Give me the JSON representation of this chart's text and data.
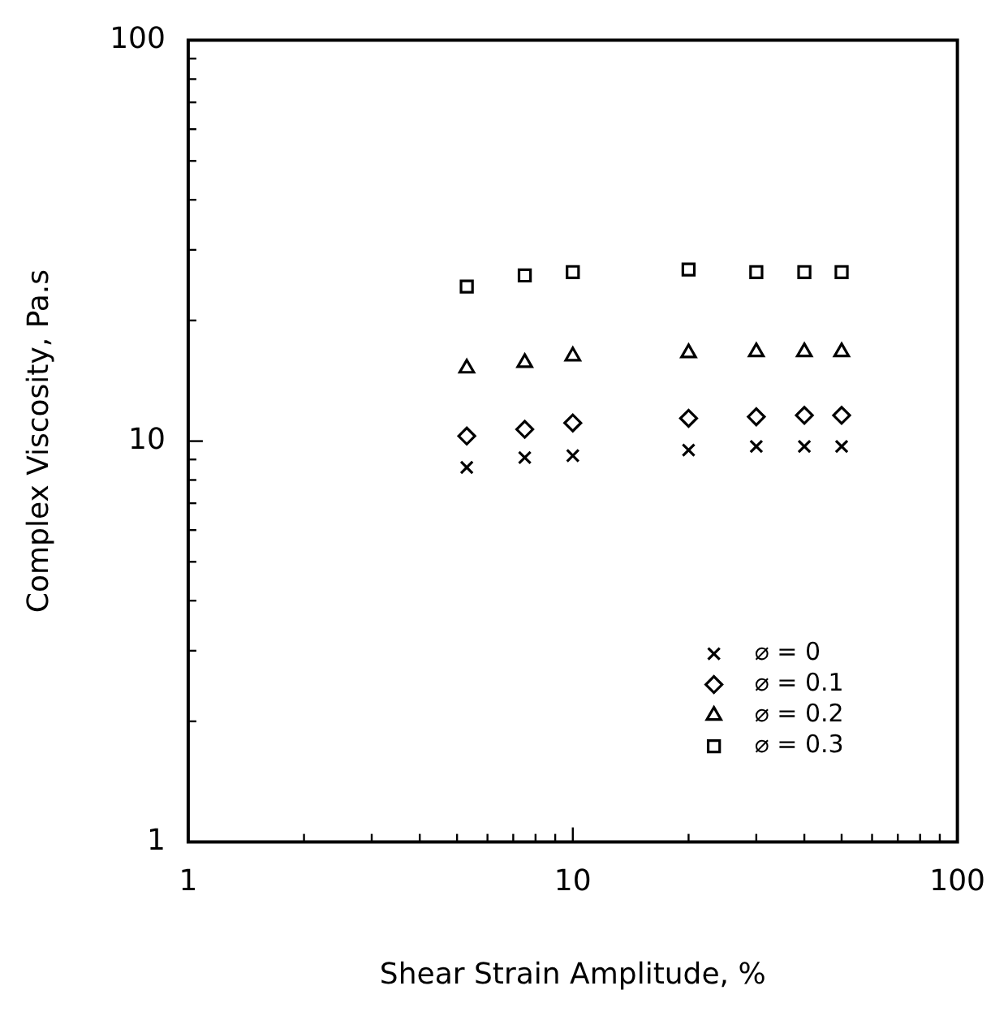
{
  "chart_data": {
    "type": "scatter",
    "xlabel": "Shear Strain Amplitude, %",
    "ylabel": "Complex Viscosity, Pa.s",
    "log": "xy",
    "grid": false,
    "legend": "bottom right",
    "xlim": [
      1,
      100
    ],
    "ylim": [
      1,
      100
    ],
    "xticks": [
      1,
      {
        "value": 2,
        "label": null
      },
      {
        "value": 3,
        "label": null
      },
      {
        "value": 4,
        "label": null
      },
      {
        "value": 5,
        "label": null
      },
      {
        "value": 6,
        "label": null
      },
      {
        "value": 7,
        "label": null
      },
      {
        "value": 8,
        "label": null
      },
      {
        "value": 9,
        "label": null
      },
      10,
      {
        "value": 20,
        "label": null
      },
      {
        "value": 30,
        "label": null
      },
      {
        "value": 40,
        "label": null
      },
      {
        "value": 50,
        "label": null
      },
      {
        "value": 60,
        "label": null
      },
      {
        "value": 70,
        "label": null
      },
      {
        "value": 80,
        "label": null
      },
      {
        "value": 90,
        "label": null
      },
      100
    ],
    "yticks": [
      1,
      {
        "value": 2,
        "label": null
      },
      {
        "value": 3,
        "label": null
      },
      {
        "value": 4,
        "label": null
      },
      {
        "value": 5,
        "label": null
      },
      {
        "value": 6,
        "label": null
      },
      {
        "value": 7,
        "label": null
      },
      {
        "value": 8,
        "label": null
      },
      {
        "value": 9,
        "label": null
      },
      10,
      {
        "value": 20,
        "label": null
      },
      {
        "value": 30,
        "label": null
      },
      {
        "value": 40,
        "label": null
      },
      {
        "value": 50,
        "label": null
      },
      {
        "value": 60,
        "label": null
      },
      {
        "value": 70,
        "label": null
      },
      {
        "value": 80,
        "label": null
      },
      {
        "value": 90,
        "label": null
      },
      100
    ],
    "x": [
      5.3,
      7.5,
      10,
      20,
      30,
      40,
      50
    ],
    "series": [
      {
        "name": "⌀ = 0",
        "color": "#000000",
        "marker": "cross",
        "values": [
          8.6,
          9.1,
          9.2,
          9.5,
          9.7,
          9.7,
          9.7
        ]
      },
      {
        "name": "⌀ = 0.1",
        "color": "#000000",
        "marker": "diamond",
        "values": [
          10.3,
          10.7,
          11.1,
          11.4,
          11.5,
          11.6,
          11.6
        ]
      },
      {
        "name": "⌀ = 0.2",
        "color": "#000000",
        "marker": "triangle",
        "values": [
          15.2,
          15.7,
          16.3,
          16.6,
          16.7,
          16.7,
          16.7
        ]
      },
      {
        "name": "⌀ = 0.3",
        "color": "#000000",
        "marker": "square",
        "values": [
          24.3,
          25.9,
          26.4,
          26.8,
          26.4,
          26.4,
          26.4
        ]
      }
    ]
  }
}
